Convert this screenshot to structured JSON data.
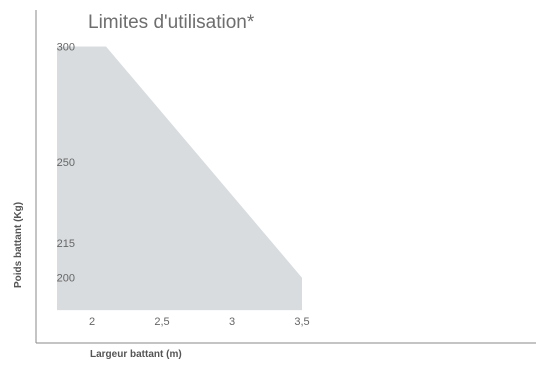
{
  "chart_data": {
    "type": "area",
    "title": "Limites d'utilisation*",
    "xlabel": "Largeur battant (m)",
    "ylabel": "Poids battant (Kg)",
    "x_ticks": [
      {
        "value": 2,
        "label": "2"
      },
      {
        "value": 2.5,
        "label": "2,5"
      },
      {
        "value": 3,
        "label": "3"
      },
      {
        "value": 3.5,
        "label": "3,5"
      }
    ],
    "y_ticks": [
      {
        "value": 300,
        "label": "300"
      },
      {
        "value": 250,
        "label": "250"
      },
      {
        "value": 215,
        "label": "215"
      },
      {
        "value": 200,
        "label": "200"
      }
    ],
    "xlim": [
      1.6,
      3.6
    ],
    "ylim": [
      183,
      308
    ],
    "series": [
      {
        "x": [
          1.75,
          2.1,
          3.5
        ],
        "y": [
          300,
          300,
          200
        ],
        "baseline": 186
      }
    ],
    "grid": false,
    "colors": {
      "fill": "#d8dcdf",
      "axis": "#8a8a8a",
      "text": "#666666"
    }
  }
}
